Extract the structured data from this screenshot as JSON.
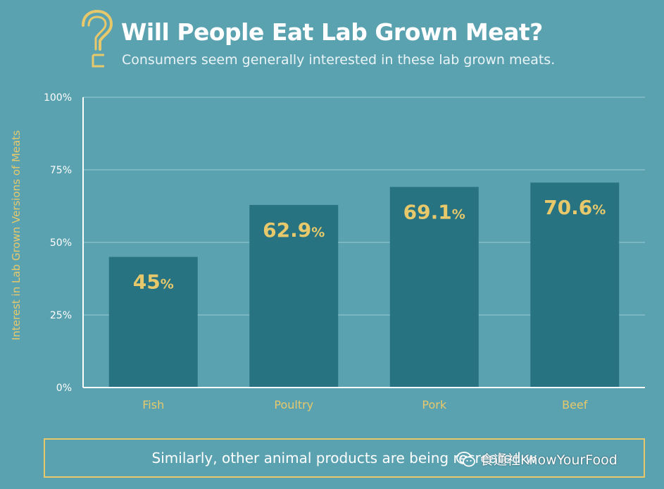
{
  "header": {
    "title": "Will People Eat Lab Grown Meat?",
    "subtitle": "Consumers seem generally interested in these lab grown meats."
  },
  "footer": {
    "text": "Similarly, other animal products are being recreated w",
    "watermark": "食通社KnowYourFood"
  },
  "colors": {
    "background": "#5ba2b1",
    "bar": "#287382",
    "accent": "#e7c96b",
    "grid": "#86bdc9",
    "axis": "#ffffff"
  },
  "chart_data": {
    "type": "bar",
    "title": "",
    "xlabel": "",
    "ylabel": "Interest in Lab Grown Versions of Meats",
    "categories": [
      "Fish",
      "Poultry",
      "Pork",
      "Beef"
    ],
    "values": [
      45,
      62.9,
      69.1,
      70.6
    ],
    "value_labels": [
      "45",
      "62.9",
      "69.1",
      "70.6"
    ],
    "value_suffix": "%",
    "ylim": [
      0,
      100
    ],
    "yticks": [
      0,
      25,
      50,
      75,
      100
    ],
    "ytick_labels": [
      "0%",
      "25%",
      "50%",
      "75%",
      "100%"
    ],
    "grid": true
  }
}
